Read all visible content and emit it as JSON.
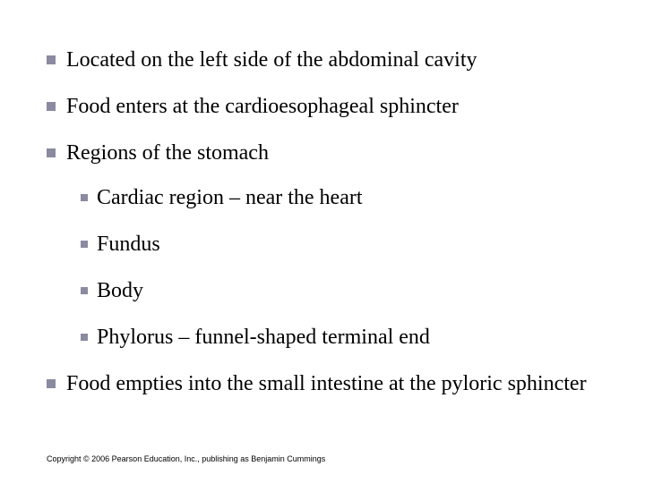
{
  "bullet_color": "#8a8aa0",
  "text_color": "#000000",
  "font_size_pt": 24,
  "copyright_font_size_pt": 9,
  "items": [
    {
      "text": "Located on the left side of the abdominal cavity"
    },
    {
      "text": "Food enters at the cardioesophageal sphincter"
    },
    {
      "text": "Regions of the stomach",
      "children": [
        {
          "text": "Cardiac region – near the heart"
        },
        {
          "text": "Fundus"
        },
        {
          "text": "Body"
        },
        {
          "text": "Phylorus – funnel-shaped terminal end"
        }
      ]
    },
    {
      "text": "Food empties into the small intestine at the pyloric sphincter"
    }
  ],
  "copyright": "Copyright © 2006 Pearson Education, Inc., publishing as Benjamin Cummings"
}
